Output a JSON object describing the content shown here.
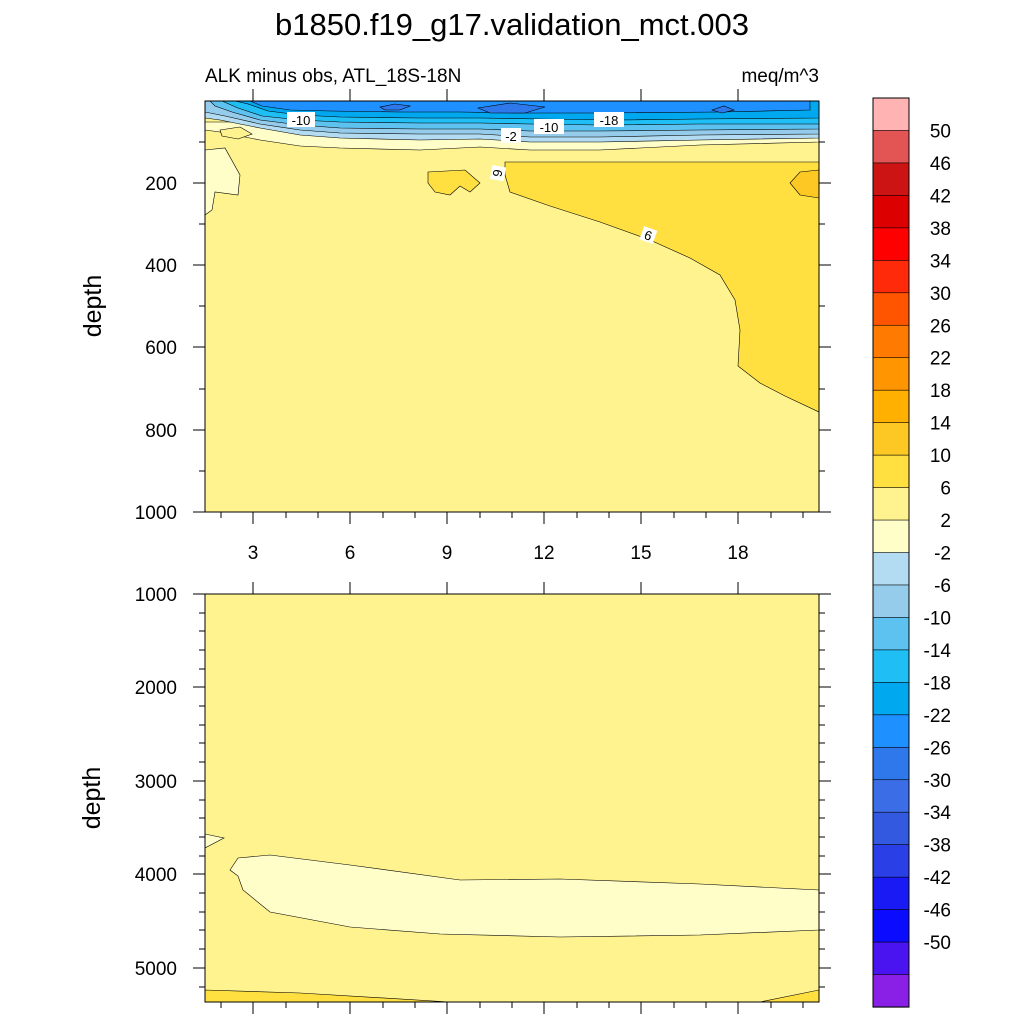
{
  "page_title": "b1850.f19_g17.validation_mct.003",
  "chart_data": [
    {
      "type": "contour",
      "panel": "upper",
      "left_string": "ALK minus obs, ATL_18S-18N",
      "right_string": "meq/m^3",
      "xlabel": "",
      "ylabel": "depth",
      "x_tick_labels": [
        "3",
        "6",
        "9",
        "12",
        "15",
        "18"
      ],
      "y_tick_labels": [
        "200",
        "400",
        "600",
        "800",
        "1000"
      ],
      "ylim": [
        0,
        1000
      ],
      "y_reversed": true,
      "contour_labels": [
        "-10",
        "-2",
        "-10",
        "-18",
        "6",
        "6"
      ],
      "summary": "Mostly 2 to 6 everywhere below ~80 m; strong negative anomalies (down to about -30) in the upper ~60 m; a 6 to 10 region on the eastern side from ~150 m down to ~760 m."
    },
    {
      "type": "contour",
      "panel": "lower",
      "xlabel": "",
      "ylabel": "depth",
      "y_tick_labels": [
        "1000",
        "2000",
        "3000",
        "4000",
        "5000"
      ],
      "ylim": [
        1000,
        5400
      ],
      "y_reversed": true,
      "summary": "Mostly 2 to 6; a -2 to 2 band between ~3800 m and ~4650 m; small 6 to 10 patch near the bottom."
    }
  ],
  "colorbar": {
    "labels": [
      "50",
      "46",
      "42",
      "38",
      "34",
      "30",
      "26",
      "22",
      "18",
      "14",
      "10",
      "6",
      "2",
      "-2",
      "-6",
      "-10",
      "-14",
      "-18",
      "-22",
      "-26",
      "-30",
      "-34",
      "-38",
      "-42",
      "-46",
      "-50"
    ],
    "colors": [
      "#ffb3b3",
      "#e35555",
      "#cc1414",
      "#dd0000",
      "#ff0000",
      "#ff2a0a",
      "#ff5500",
      "#ff7a00",
      "#ff9500",
      "#ffb000",
      "#fdc724",
      "#ffe040",
      "#fff38f",
      "#fffdc8",
      "#b3dcf2",
      "#96cceb",
      "#5dc2f0",
      "#1fbff5",
      "#00a8f0",
      "#1e90ff",
      "#2e78ec",
      "#3b6de6",
      "#3359e0",
      "#2b3fe6",
      "#1a1af5",
      "#0b0bff",
      "#4a14f0",
      "#8a20e6"
    ]
  }
}
